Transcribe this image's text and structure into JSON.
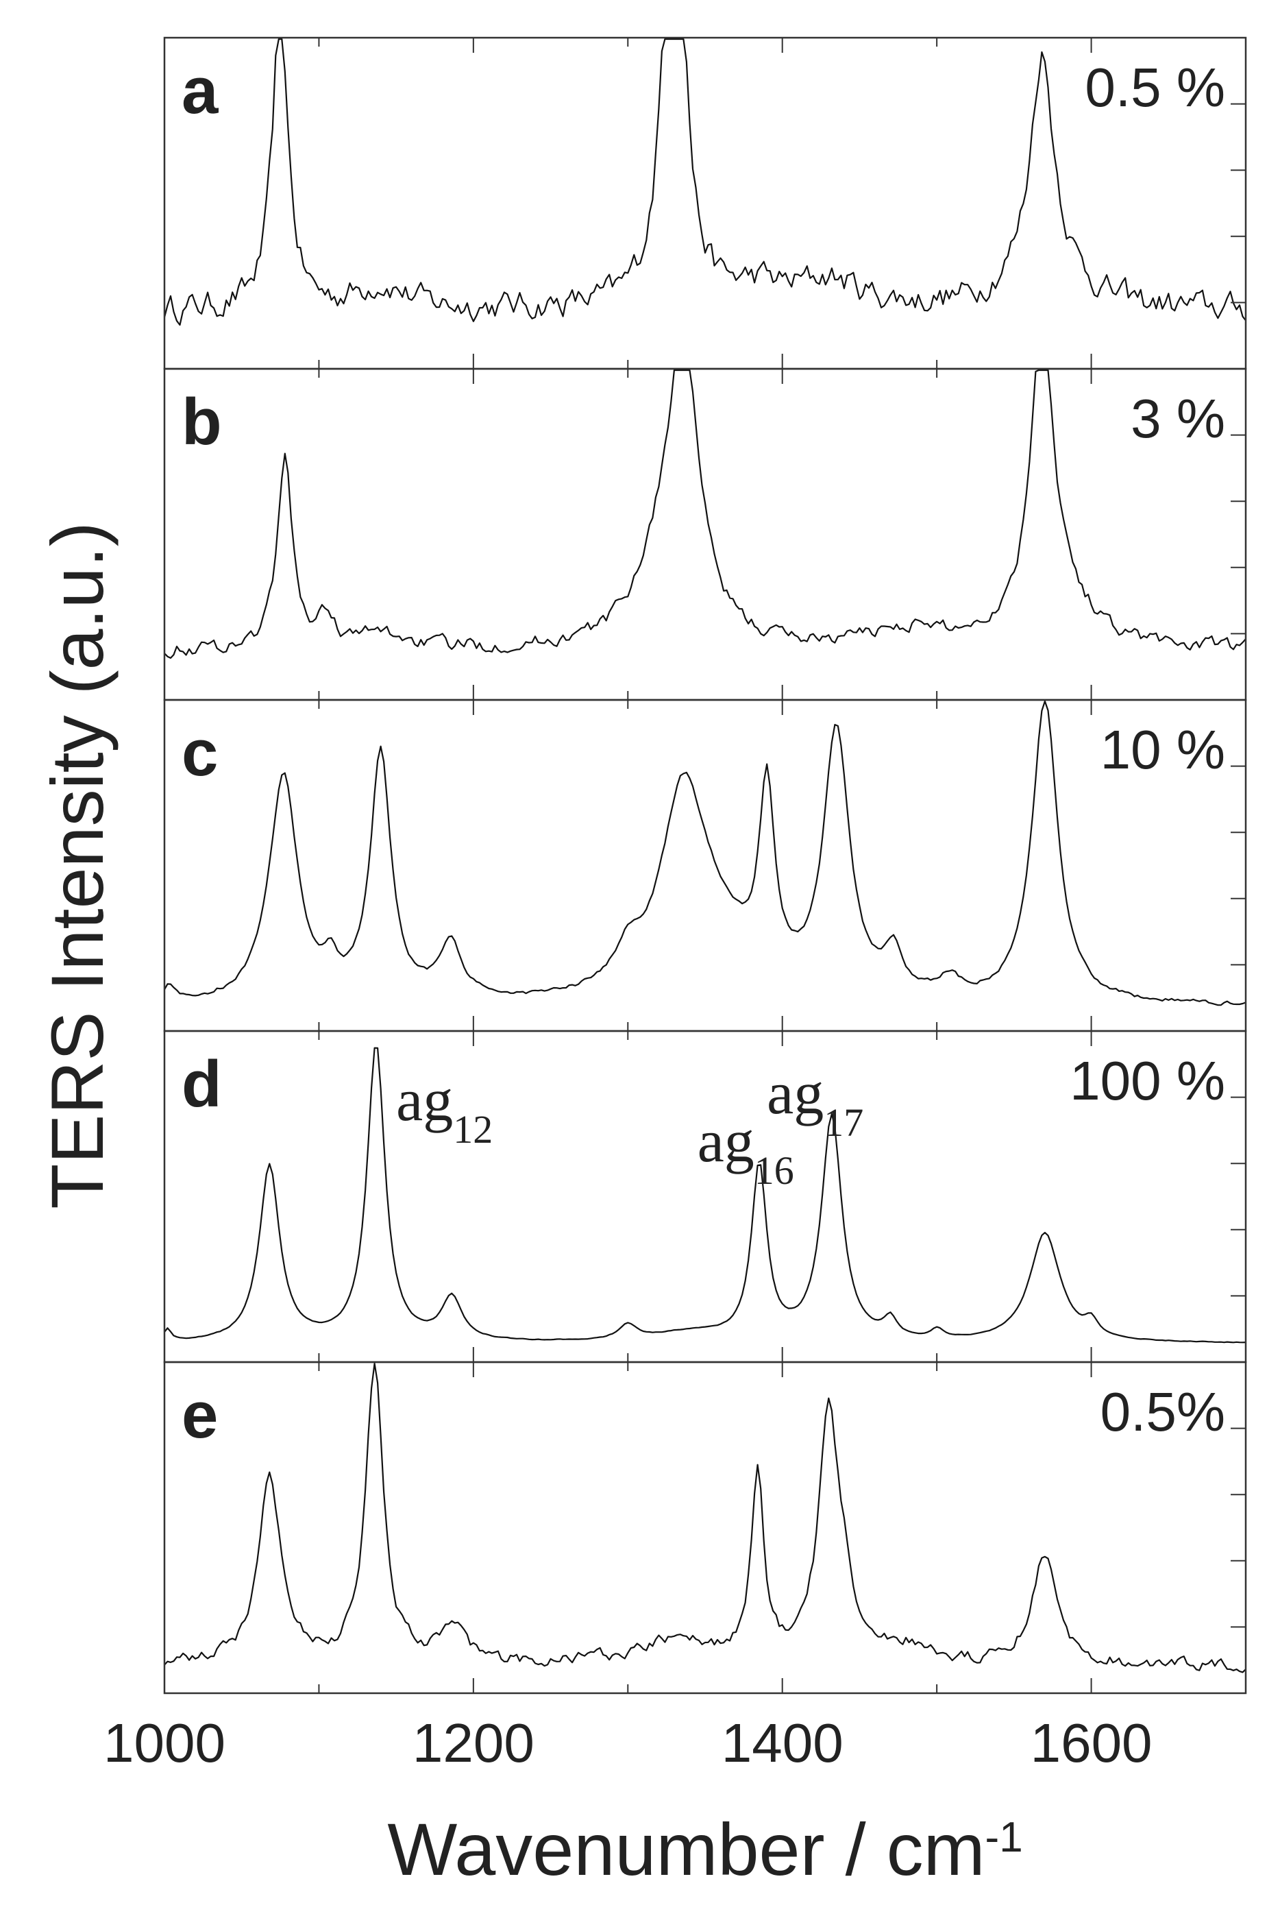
{
  "chart_data": {
    "type": "line",
    "xlabel": "Wavenumber / cm",
    "xlabel_sup": "-1",
    "ylabel": "TERS Intensity (a.u.)",
    "xlim": [
      1000,
      1700
    ],
    "xticks": [
      "1000",
      "1200",
      "1400",
      "1600"
    ],
    "grid": false,
    "panels": [
      {
        "id": "a",
        "label": "a",
        "concentration": "0.5 %",
        "noise": 0.07,
        "baseline": 0.15,
        "peaks": [
          [
            1075,
            1.0,
            6
          ],
          [
            1326,
            0.75,
            6
          ],
          [
            1334,
            0.78,
            5
          ],
          [
            1330,
            0.25,
            15
          ],
          [
            1568,
            0.6,
            8
          ],
          [
            1570,
            0.25,
            20
          ],
          [
            1140,
            0.08,
            20
          ],
          [
            1430,
            0.09,
            25
          ],
          [
            1385,
            0.06,
            20
          ]
        ]
      },
      {
        "id": "b",
        "label": "b",
        "concentration": "3 %",
        "noise": 0.035,
        "baseline": 0.12,
        "peaks": [
          [
            1078,
            0.62,
            6
          ],
          [
            1105,
            0.1,
            6
          ],
          [
            1336,
            0.95,
            12
          ],
          [
            1320,
            0.2,
            20
          ],
          [
            1568,
            0.95,
            8
          ],
          [
            1575,
            0.2,
            25
          ],
          [
            1480,
            0.06,
            30
          ],
          [
            1140,
            0.05,
            20
          ]
        ]
      },
      {
        "id": "c",
        "label": "c",
        "concentration": "10 %",
        "noise": 0.01,
        "baseline": 0.04,
        "peaks": [
          [
            1077,
            0.75,
            11
          ],
          [
            1140,
            0.82,
            8
          ],
          [
            1108,
            0.08,
            5
          ],
          [
            1185,
            0.18,
            9
          ],
          [
            1336,
            0.66,
            18
          ],
          [
            1300,
            0.1,
            10
          ],
          [
            1390,
            0.62,
            6
          ],
          [
            1435,
            0.88,
            10
          ],
          [
            1472,
            0.14,
            7
          ],
          [
            1508,
            0.06,
            8
          ],
          [
            1570,
            1.0,
            10
          ],
          [
            1003,
            0.06,
            4
          ],
          [
            1360,
            0.15,
            25
          ]
        ]
      },
      {
        "id": "d",
        "label": "d",
        "concentration": "100 %",
        "noise": 0.002,
        "baseline": 0.02,
        "peaks": [
          [
            1068,
            0.58,
            8
          ],
          [
            1137,
            0.98,
            7
          ],
          [
            1186,
            0.14,
            8
          ],
          [
            1300,
            0.05,
            7
          ],
          [
            1385,
            0.57,
            6
          ],
          [
            1432,
            0.74,
            8
          ],
          [
            1470,
            0.06,
            5
          ],
          [
            1500,
            0.03,
            5
          ],
          [
            1570,
            0.36,
            12
          ],
          [
            1600,
            0.05,
            5
          ],
          [
            1002,
            0.04,
            3
          ],
          [
            1340,
            0.03,
            30
          ]
        ]
      },
      {
        "id": "e",
        "label": "e",
        "concentration": "0.5%",
        "noise": 0.03,
        "baseline": 0.05,
        "peaks": [
          [
            1068,
            0.62,
            9
          ],
          [
            1136,
            0.98,
            7
          ],
          [
            1186,
            0.12,
            10
          ],
          [
            1384,
            0.6,
            5
          ],
          [
            1430,
            0.8,
            8
          ],
          [
            1440,
            0.15,
            6
          ],
          [
            1570,
            0.36,
            10
          ],
          [
            1330,
            0.08,
            30
          ],
          [
            1480,
            0.06,
            15
          ]
        ]
      }
    ],
    "annotations": [
      {
        "panel": "d",
        "text": "ag",
        "sub": "12",
        "x": 1150
      },
      {
        "panel": "d",
        "text": "ag",
        "sub": "16",
        "x": 1345
      },
      {
        "panel": "d",
        "text": "ag",
        "sub": "17",
        "x": 1390
      }
    ]
  }
}
